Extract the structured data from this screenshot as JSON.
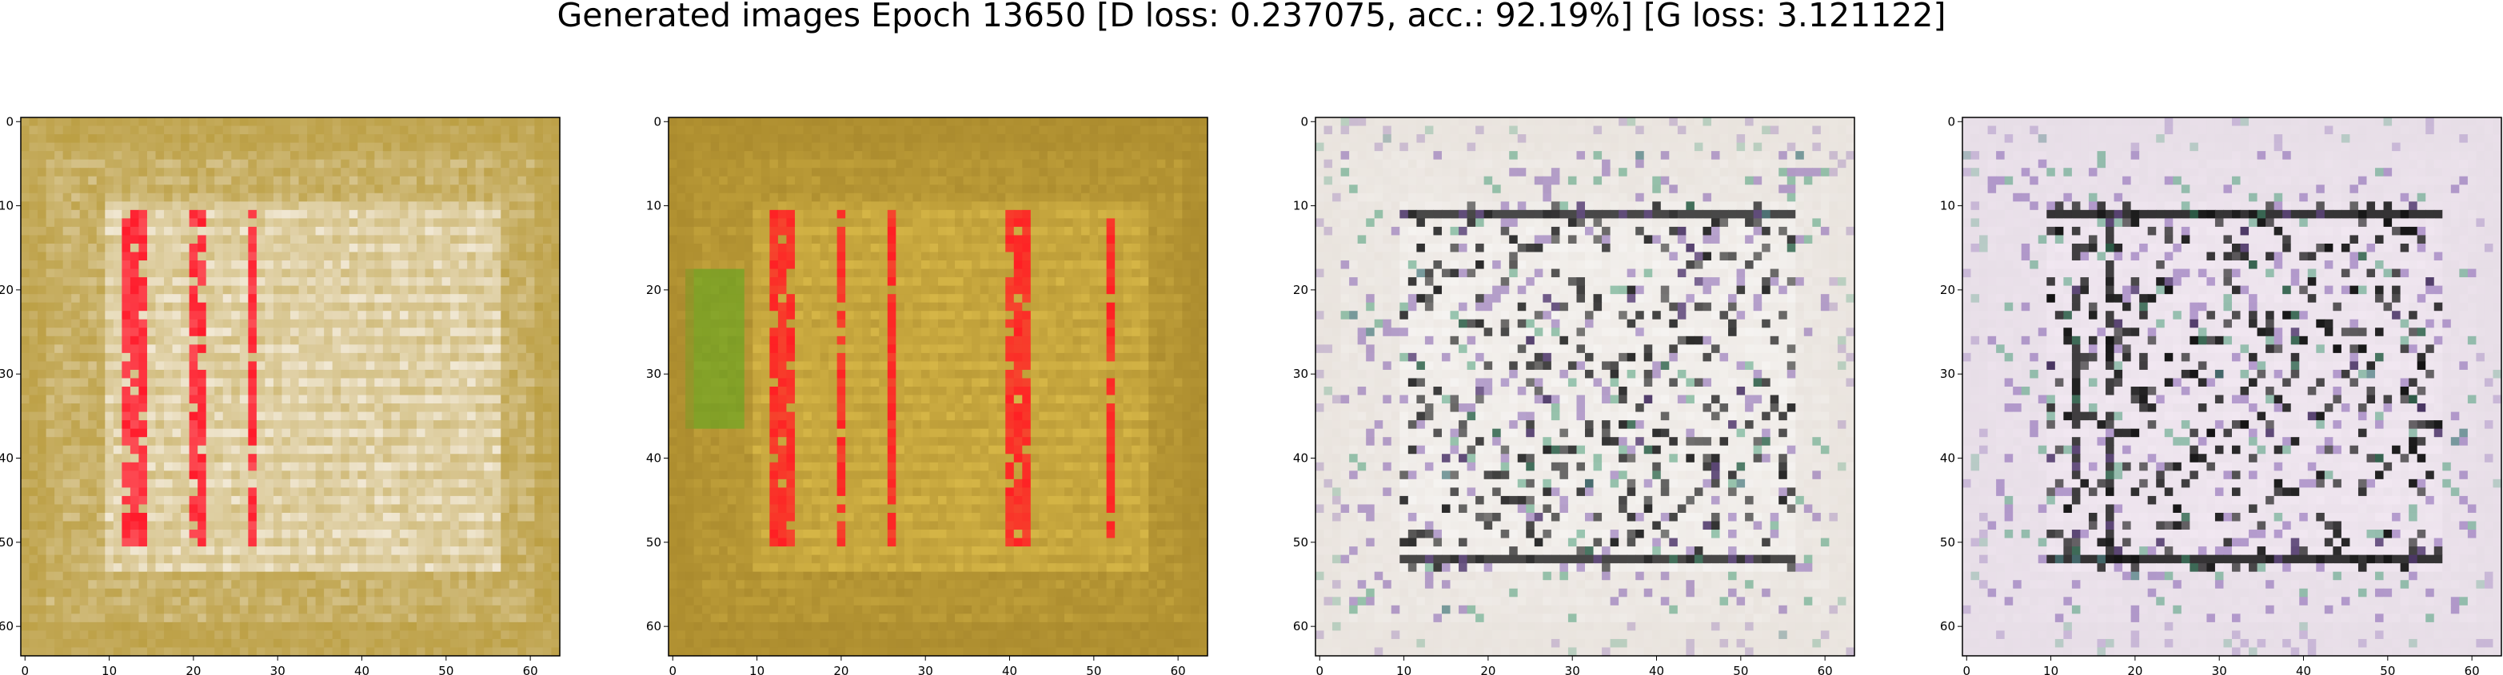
{
  "figure": {
    "title": "Generated images Epoch 13650 [D loss: 0.237075, acc.: 92.19%] [G loss: 3.121122]"
  },
  "axes": {
    "x_ticks": [
      "0",
      "10",
      "20",
      "30",
      "40",
      "50",
      "60"
    ],
    "y_ticks": [
      "0",
      "10",
      "20",
      "30",
      "40",
      "50",
      "60"
    ],
    "xlim": [
      -0.5,
      63.5
    ],
    "ylim": [
      63.5,
      -0.5
    ]
  },
  "images": [
    {
      "name": "generated-image-1",
      "base_color": "#b89a3a",
      "accent_color": "#ff1a2a",
      "light_color": "#f4ecdc"
    },
    {
      "name": "generated-image-2",
      "base_color": "#a8882c",
      "accent_color": "#ff1f24",
      "light_color": "#d8b848"
    },
    {
      "name": "generated-image-3",
      "base_color": "#e8e2dc",
      "accent_color": "#2a2a2a",
      "light_color": "#f6f4f2"
    },
    {
      "name": "generated-image-4",
      "base_color": "#e6dde6",
      "accent_color": "#141414",
      "light_color": "#f2e8f2"
    }
  ]
}
